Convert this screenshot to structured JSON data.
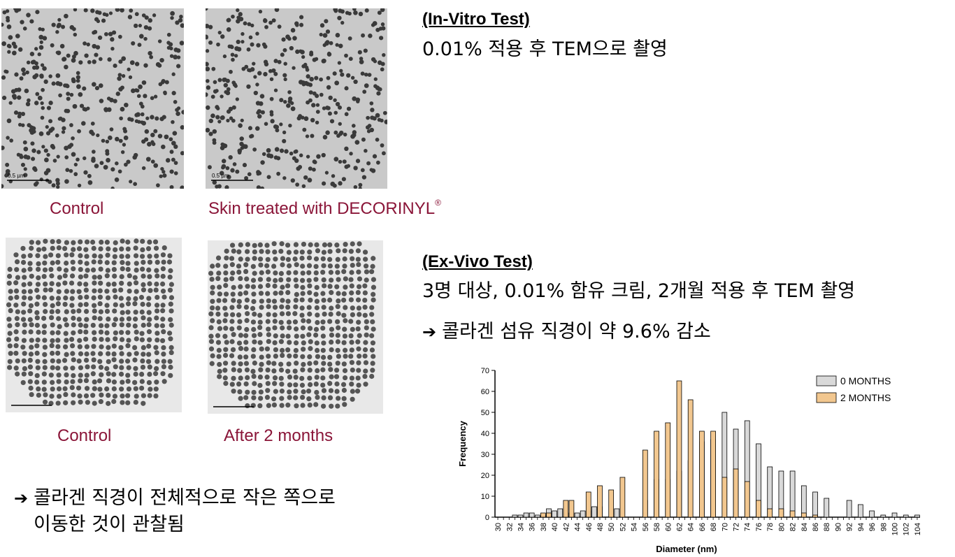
{
  "captions": {
    "top_left": "Control",
    "top_right": "Skin treated with DECORINYL",
    "top_right_mark": "®",
    "bottom_left": "Control",
    "bottom_right": "After 2 months"
  },
  "scale_bars": {
    "top_left": "0.5 µm",
    "top_right": "0.5 µm"
  },
  "in_vitro": {
    "heading": "(In-Vitro Test)",
    "text": "0.01% 적용 후 TEM으로 촬영"
  },
  "ex_vivo": {
    "heading": "(Ex-Vivo Test)",
    "text": "3명 대상, 0.01% 함유 크림, 2개월 적용 후 TEM 촬영",
    "result": "콜라겐 섬유 직경이 약 9.6% 감소"
  },
  "conclusion": {
    "line1": "콜라겐 직경이 전체적으로 작은 쪽으로",
    "line2": "이동한 것이 관찰됨"
  },
  "arrow_symbol": "➔",
  "chart_data": {
    "type": "bar",
    "xlabel": "Diameter (nm)",
    "ylabel": "Frequency",
    "ylim": [
      0,
      70
    ],
    "yticks": [
      0,
      10,
      20,
      30,
      40,
      50,
      60,
      70
    ],
    "categories": [
      30,
      31,
      32,
      33,
      34,
      35,
      36,
      37,
      38,
      39,
      40,
      41,
      42,
      43,
      44,
      45,
      46,
      47,
      48,
      49,
      50,
      51,
      52,
      53,
      54,
      55,
      56,
      57,
      58,
      59,
      60,
      61,
      62,
      63,
      64,
      65,
      66,
      67,
      68,
      69,
      70,
      71,
      72,
      73,
      74,
      75,
      76,
      77,
      78,
      79,
      80,
      81,
      82,
      83,
      84,
      85,
      86,
      87,
      88,
      89,
      90,
      91,
      92,
      93,
      94,
      95,
      96,
      97,
      98,
      99,
      100,
      101,
      102,
      103,
      104
    ],
    "xtick_labels": [
      "30",
      "32",
      "34",
      "36",
      "38",
      "40",
      "42",
      "44",
      "46",
      "48",
      "50",
      "52",
      "54",
      "56",
      "58",
      "60",
      "62",
      "64",
      "66",
      "68",
      "70",
      "72",
      "74",
      "76",
      "78",
      "80",
      "82",
      "84",
      "86",
      "88",
      "90",
      "92",
      "94",
      "96",
      "98",
      "100",
      "102",
      "104"
    ],
    "series": [
      {
        "name": "0 MONTHS",
        "color": "#d9d9d9",
        "values": [
          0,
          0,
          0,
          1,
          1,
          2,
          2,
          1,
          1,
          4,
          3,
          4,
          2,
          2,
          2,
          3,
          3,
          5,
          5,
          0,
          0,
          4,
          0,
          0,
          0,
          0,
          8,
          0,
          18,
          0,
          18,
          0,
          22,
          0,
          27,
          0,
          36,
          0,
          37,
          0,
          50,
          0,
          42,
          0,
          46,
          0,
          35,
          0,
          24,
          0,
          22,
          0,
          22,
          0,
          15,
          0,
          12,
          0,
          9,
          0,
          0,
          0,
          8,
          0,
          6,
          0,
          3,
          0,
          1,
          0,
          2,
          0,
          1,
          0,
          1
        ]
      },
      {
        "name": "2 MONTHS",
        "color": "#f2c78f",
        "values": [
          0,
          0,
          0,
          0,
          0,
          0,
          0,
          0,
          2,
          2,
          0,
          0,
          8,
          8,
          0,
          0,
          12,
          0,
          15,
          0,
          13,
          0,
          19,
          0,
          0,
          0,
          32,
          0,
          41,
          0,
          45,
          0,
          65,
          0,
          56,
          0,
          41,
          0,
          41,
          0,
          19,
          0,
          23,
          0,
          17,
          0,
          8,
          0,
          4,
          0,
          4,
          0,
          3,
          0,
          2,
          0,
          1,
          0,
          0,
          0,
          0,
          0,
          0,
          0,
          0,
          0,
          0,
          0,
          0,
          0,
          0,
          0,
          0,
          0,
          0
        ]
      }
    ],
    "legend_position": "top-right"
  }
}
